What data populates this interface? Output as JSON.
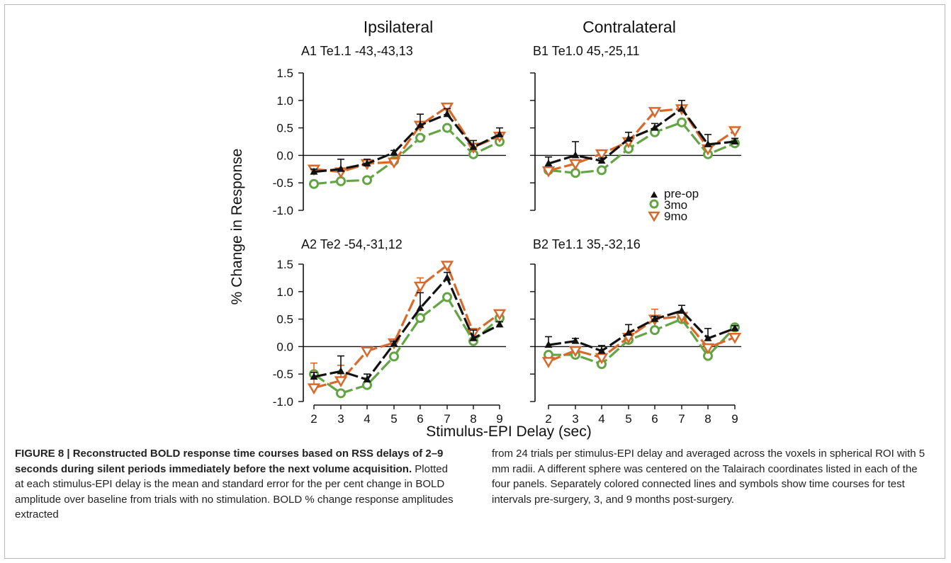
{
  "figure": {
    "column_headers": [
      "Ipsilateral",
      "Contralateral"
    ],
    "ylabel": "% Change in Response",
    "xlabel": "Stimulus-EPI Delay (sec)",
    "legend": [
      "pre-op",
      "3mo",
      "9mo"
    ],
    "colors": {
      "pre-op": "#111111",
      "3mo": "#63a444",
      "9mo": "#d9692a"
    }
  },
  "chart_data": [
    {
      "type": "line",
      "panel": "A1",
      "label": "A1   Te1.1 -43,-43,13",
      "x": [
        2,
        3,
        4,
        5,
        6,
        7,
        8,
        9
      ],
      "ylim": [
        -1.0,
        1.5
      ],
      "yticks": [
        1.5,
        1.0,
        0.5,
        0.0,
        -0.5,
        -1.0
      ],
      "ytick_labels": [
        "1.5",
        "1.0",
        "0.5",
        "0.0",
        "-0.5",
        "-1.0"
      ],
      "xtick_labels": [],
      "series": [
        {
          "name": "pre-op",
          "values": [
            -0.3,
            -0.25,
            -0.15,
            0.05,
            0.55,
            0.75,
            0.15,
            0.38
          ],
          "err": [
            0.05,
            0.18,
            0.08,
            0.04,
            0.2,
            0.1,
            0.12,
            0.12
          ]
        },
        {
          "name": "3mo",
          "values": [
            -0.52,
            -0.47,
            -0.45,
            -0.1,
            0.32,
            0.5,
            0.02,
            0.25
          ]
        },
        {
          "name": "9mo",
          "values": [
            -0.25,
            -0.3,
            -0.15,
            -0.12,
            0.55,
            0.88,
            0.15,
            0.35
          ]
        }
      ]
    },
    {
      "type": "line",
      "panel": "B1",
      "label": "B1   Te1.0 45,-25,11",
      "x": [
        2,
        3,
        4,
        5,
        6,
        7,
        8,
        9
      ],
      "ylim": [
        -1.0,
        1.5
      ],
      "yticks": [
        1.5,
        1.0,
        0.5,
        0.0,
        -0.5,
        -1.0
      ],
      "ytick_labels": [],
      "xtick_labels": [],
      "series": [
        {
          "name": "pre-op",
          "values": [
            -0.15,
            0.0,
            -0.1,
            0.3,
            0.5,
            0.85,
            0.2,
            0.25
          ],
          "err": [
            0.12,
            0.25,
            0.05,
            0.12,
            0.08,
            0.15,
            0.18,
            0.06
          ]
        },
        {
          "name": "3mo",
          "values": [
            -0.27,
            -0.32,
            -0.27,
            0.12,
            0.42,
            0.6,
            0.02,
            0.22
          ]
        },
        {
          "name": "9mo",
          "values": [
            -0.28,
            -0.15,
            0.03,
            0.25,
            0.8,
            0.85,
            0.12,
            0.45
          ]
        }
      ]
    },
    {
      "type": "line",
      "panel": "A2",
      "label": "A2   Te2 -54,-31,12",
      "x": [
        2,
        3,
        4,
        5,
        6,
        7,
        8,
        9
      ],
      "ylim": [
        -1.0,
        1.5
      ],
      "yticks": [
        1.5,
        1.0,
        0.5,
        0.0,
        -0.5,
        -1.0
      ],
      "ytick_labels": [
        "1.5",
        "1.0",
        "0.5",
        "0.0",
        "-0.5",
        "-1.0"
      ],
      "xtick_labels": [
        "2",
        "3",
        "4",
        "5",
        "6",
        "7",
        "8",
        "9"
      ],
      "series": [
        {
          "name": "pre-op",
          "values": [
            -0.55,
            -0.45,
            -0.6,
            0.05,
            0.7,
            1.25,
            0.15,
            0.4
          ],
          "err": [
            0.08,
            0.28,
            0.1,
            0.05,
            0.28,
            0.1,
            0.15,
            0.05
          ]
        },
        {
          "name": "3mo",
          "values": [
            -0.5,
            -0.85,
            -0.7,
            -0.18,
            0.52,
            0.9,
            0.1,
            0.52
          ]
        },
        {
          "name": "9mo",
          "values": [
            -0.75,
            -0.62,
            -0.08,
            0.07,
            1.1,
            1.48,
            0.25,
            0.6
          ],
          "err": [
            0.45,
            0.28,
            0.0,
            0.0,
            0.15,
            0.05,
            0.08,
            0.05
          ]
        }
      ]
    },
    {
      "type": "line",
      "panel": "B2",
      "label": "B2   Te1.1 35,-32,16",
      "x": [
        2,
        3,
        4,
        5,
        6,
        7,
        8,
        9
      ],
      "ylim": [
        -1.0,
        1.5
      ],
      "yticks": [
        1.5,
        1.0,
        0.5,
        0.0,
        -0.5,
        -1.0
      ],
      "ytick_labels": [],
      "xtick_labels": [
        "2",
        "3",
        "4",
        "5",
        "6",
        "7",
        "8",
        "9"
      ],
      "series": [
        {
          "name": "pre-op",
          "values": [
            0.03,
            0.1,
            -0.08,
            0.25,
            0.5,
            0.65,
            0.15,
            0.33
          ],
          "err": [
            0.15,
            0.05,
            0.1,
            0.15,
            0.05,
            0.1,
            0.18,
            0.05
          ]
        },
        {
          "name": "3mo",
          "values": [
            -0.15,
            -0.15,
            -0.32,
            0.12,
            0.3,
            0.5,
            -0.17,
            0.35
          ]
        },
        {
          "name": "9mo",
          "values": [
            -0.27,
            -0.07,
            -0.2,
            0.17,
            0.5,
            0.55,
            -0.02,
            0.17
          ],
          "err": [
            0.0,
            0.0,
            0.0,
            0.0,
            0.18,
            0.0,
            0.0,
            0.0
          ]
        }
      ]
    }
  ],
  "caption": {
    "bold": "FIGURE 8 | Reconstructed BOLD response time courses based on RSS delays of 2–9 seconds during silent periods immediately before the next volume acquisition.",
    "left": " Plotted at each stimulus-EPI delay is the mean and standard error for the per cent change in BOLD amplitude over baseline from trials with no stimulation. BOLD % change response amplitudes extracted",
    "right": "from 24 trials per stimulus-EPI delay and averaged across the voxels in spherical ROI with 5 mm radii. A different sphere was centered on the Talairach coordinates listed in each of the four panels. Separately colored connected lines and symbols show time courses for test intervals pre-surgery, 3, and 9 months post-surgery."
  }
}
